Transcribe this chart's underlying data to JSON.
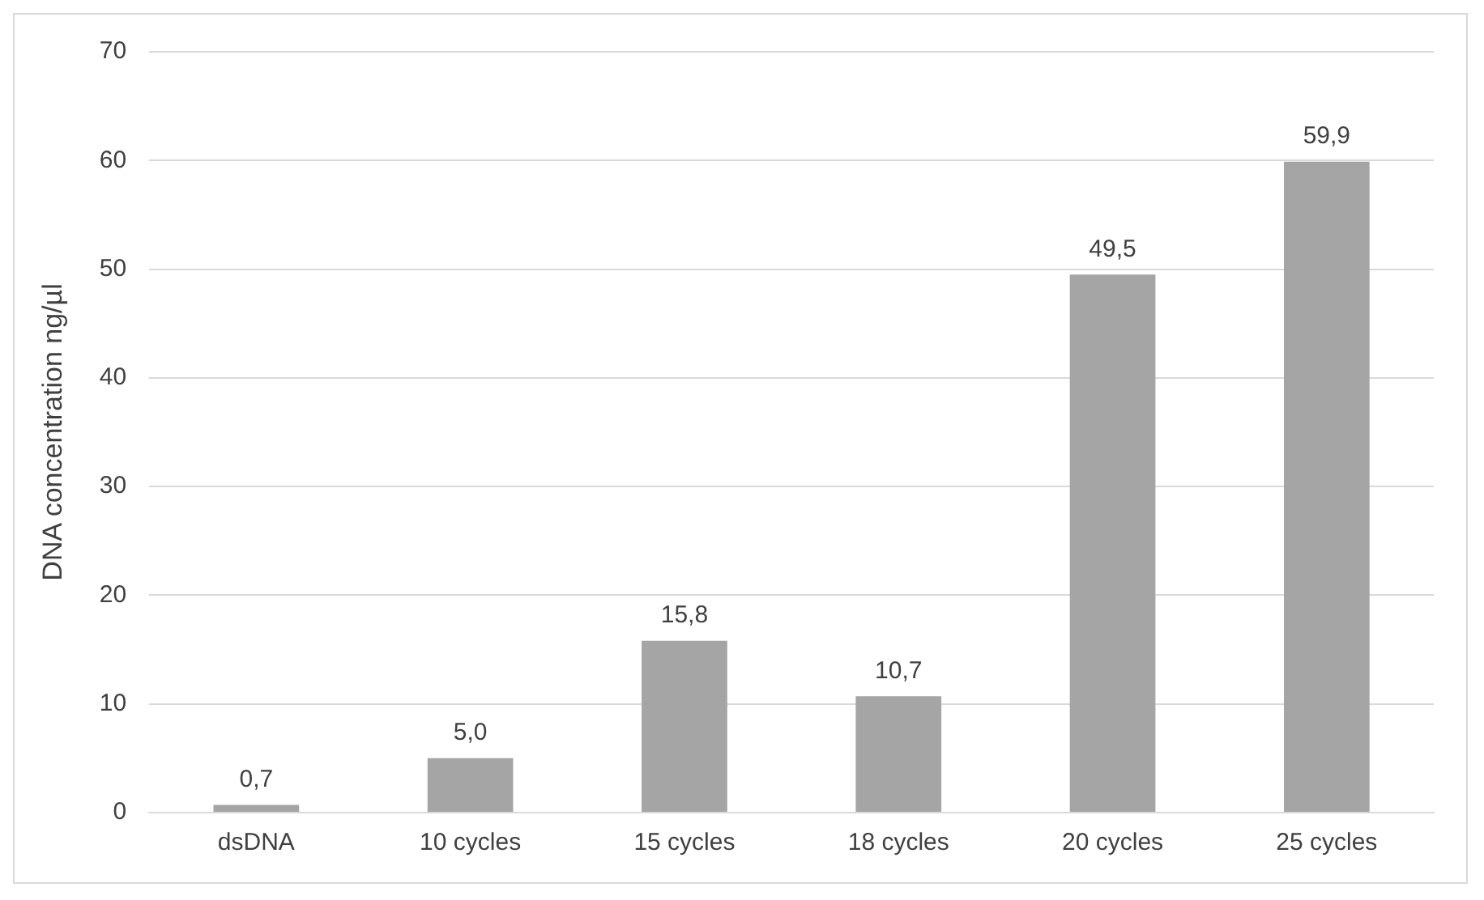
{
  "chart_data": {
    "type": "bar",
    "ylabel": "DNA concentration ng/µl",
    "categories": [
      "dsDNA",
      "10 cycles",
      "15 cycles",
      "18 cycles",
      "20 cycles",
      "25 cycles"
    ],
    "values": [
      0.7,
      5.0,
      15.8,
      10.7,
      49.5,
      59.9
    ],
    "value_labels": [
      "0,7",
      "5,0",
      "15,8",
      "10,7",
      "49,5",
      "59,9"
    ],
    "color": "#a5a5a5",
    "ylim": [
      0,
      70
    ],
    "yticks": [
      0,
      10,
      20,
      30,
      40,
      50,
      60,
      70
    ],
    "grid": "y",
    "legend": false
  }
}
